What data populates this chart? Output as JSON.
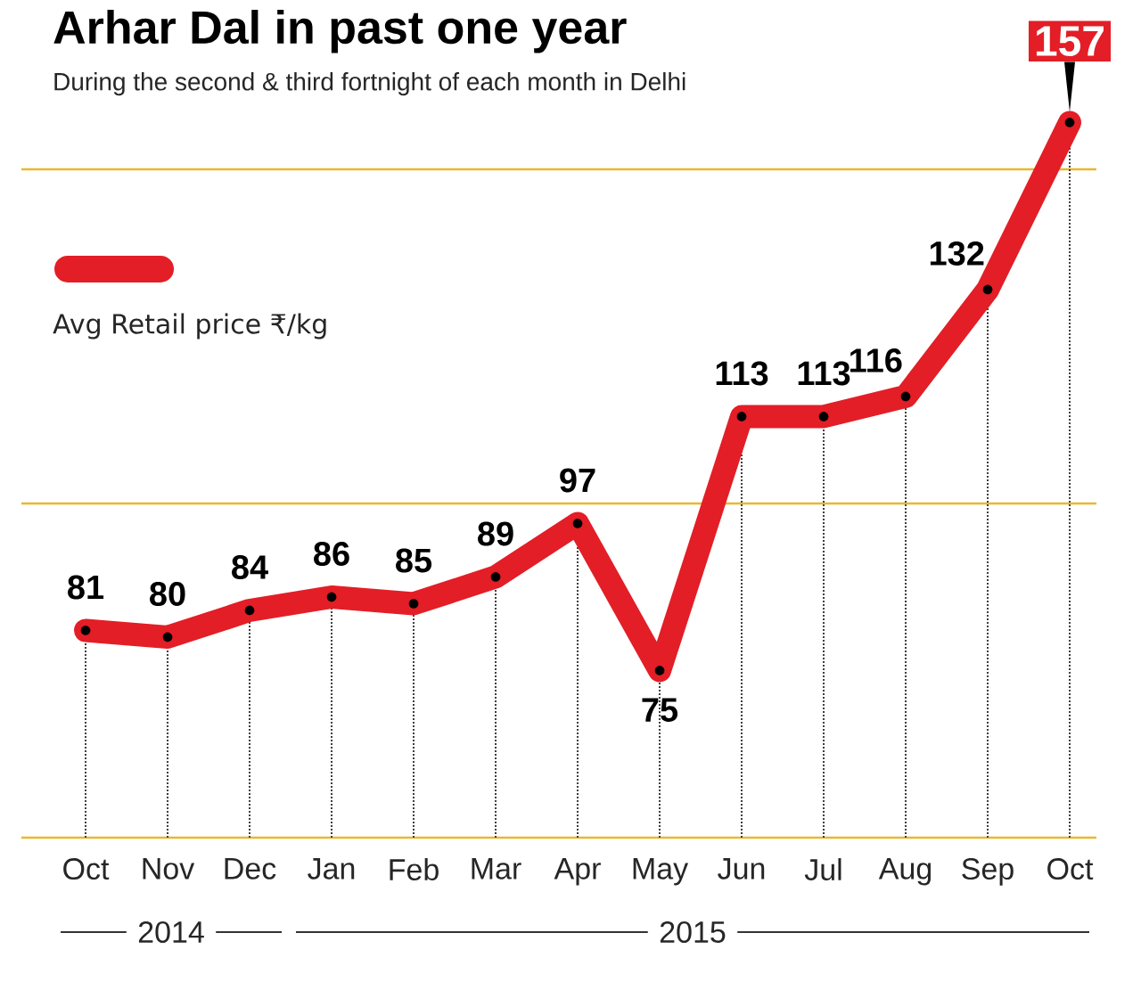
{
  "chart_data": {
    "type": "line",
    "title": "Arhar Dal in past one year",
    "subtitle": "During the second & third fortnight of each month in Delhi",
    "categories": [
      "Oct",
      "Nov",
      "Dec",
      "Jan",
      "Feb",
      "Mar",
      "Apr",
      "May",
      "Jun",
      "Jul",
      "Aug",
      "Sep",
      "Oct"
    ],
    "series": [
      {
        "name": "Avg Retail price ₹/kg",
        "color": "#e31e26",
        "values": [
          81,
          80,
          84,
          86,
          85,
          89,
          97,
          75,
          113,
          113,
          116,
          132,
          157
        ],
        "value_labels": [
          "81",
          "80",
          "84",
          "86",
          "85",
          "89",
          "97",
          "75",
          "113",
          "113",
          "116",
          "132",
          "157"
        ]
      }
    ],
    "ref_lines": [
      {
        "axis": "y",
        "value": 50,
        "color": "#e8b830"
      },
      {
        "axis": "y",
        "value": 100,
        "color": "#e8b830"
      },
      {
        "axis": "y",
        "value": 150,
        "color": "#e8b830"
      }
    ],
    "grid": "x",
    "tick_labels": "x",
    "legend": "top left",
    "marker": "circle",
    "line_style": "solid",
    "annotations": [
      "2014",
      "2015"
    ]
  }
}
